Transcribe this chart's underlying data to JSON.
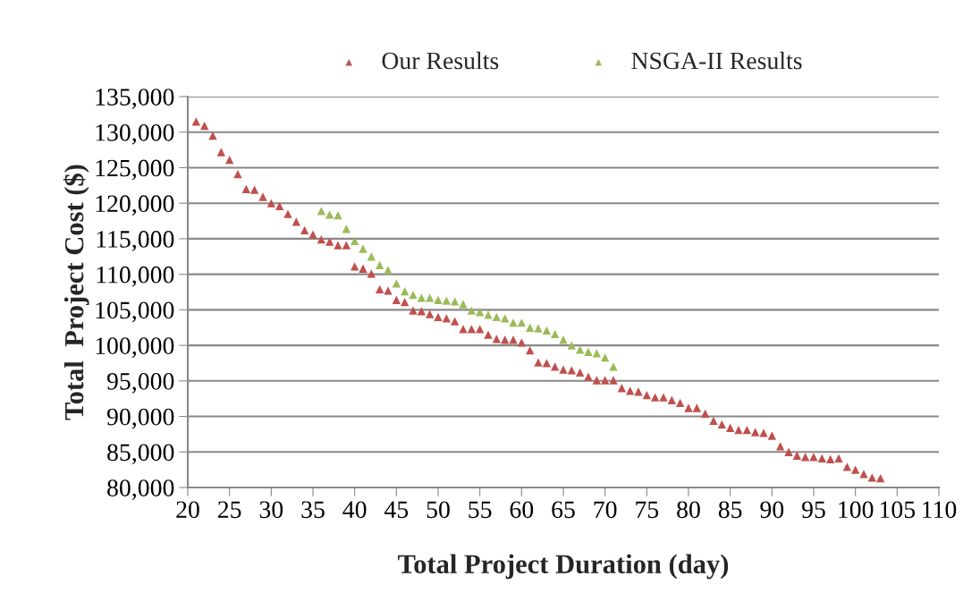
{
  "chart_data": {
    "type": "scatter",
    "xlabel": "Total Project Duration (day)",
    "ylabel": "Total  Project Cost ($)",
    "series": [
      {
        "name": "Our Results",
        "color": "#c0504d",
        "x": [
          21,
          22,
          23,
          24,
          25,
          26,
          27,
          28,
          29,
          30,
          31,
          32,
          33,
          34,
          35,
          36,
          37,
          38,
          39,
          40,
          41,
          42,
          43,
          44,
          45,
          46,
          47,
          48,
          49,
          50,
          51,
          52,
          53,
          54,
          55,
          56,
          57,
          58,
          59,
          60,
          61,
          62,
          63,
          64,
          65,
          66,
          67,
          68,
          69,
          70,
          71,
          72,
          73,
          74,
          75,
          76,
          77,
          78,
          79,
          80,
          81,
          82,
          83,
          84,
          85,
          86,
          87,
          88,
          89,
          90,
          91,
          92,
          93,
          94,
          95,
          96,
          97,
          98,
          99,
          100,
          101,
          102,
          103
        ],
        "values": [
          131500,
          130900,
          129500,
          127200,
          126100,
          124100,
          122000,
          121900,
          120900,
          120000,
          119600,
          118500,
          117400,
          116200,
          115600,
          114900,
          114600,
          114100,
          114100,
          111100,
          110800,
          110100,
          107900,
          107700,
          106400,
          106100,
          104900,
          104800,
          104400,
          104000,
          103800,
          103400,
          102300,
          102300,
          102300,
          101500,
          100900,
          100800,
          100800,
          100400,
          99300,
          97600,
          97500,
          97000,
          96600,
          96500,
          96200,
          95600,
          95100,
          95100,
          95100,
          94000,
          93600,
          93500,
          93000,
          92700,
          92700,
          92300,
          91900,
          91200,
          91200,
          90400,
          89400,
          88900,
          88400,
          88100,
          88100,
          87800,
          87700,
          87300,
          85800,
          85000,
          84500,
          84300,
          84300,
          84100,
          84000,
          84100,
          82900,
          82500,
          81900,
          81400,
          81300
        ]
      },
      {
        "name": "NSGA-II Results",
        "color": "#9bbb59",
        "x": [
          36,
          37,
          38,
          39,
          40,
          41,
          42,
          43,
          44,
          45,
          46,
          47,
          48,
          49,
          50,
          51,
          52,
          53,
          54,
          55,
          56,
          57,
          58,
          59,
          60,
          61,
          62,
          63,
          64,
          65,
          66,
          67,
          68,
          69,
          70,
          71
        ],
        "values": [
          118900,
          118400,
          118300,
          116400,
          114700,
          113600,
          112500,
          111300,
          110600,
          108700,
          107600,
          107100,
          106700,
          106700,
          106400,
          106300,
          106200,
          105800,
          104900,
          104700,
          104300,
          104000,
          103800,
          103200,
          103200,
          102500,
          102400,
          102100,
          101600,
          100800,
          100000,
          99400,
          99100,
          98900,
          98300,
          97000
        ]
      }
    ],
    "xlim": [
      20,
      110
    ],
    "xticks": [
      20,
      25,
      30,
      35,
      40,
      45,
      50,
      55,
      60,
      65,
      70,
      75,
      80,
      85,
      90,
      95,
      100,
      105,
      110
    ],
    "ylim": [
      80000,
      135000
    ],
    "yticks": [
      {
        "value": 80000,
        "label": "80,000"
      },
      {
        "value": 85000,
        "label": "85,000"
      },
      {
        "value": 90000,
        "label": "90,000"
      },
      {
        "value": 95000,
        "label": "95,000"
      },
      {
        "value": 100000,
        "label": "100,000"
      },
      {
        "value": 105000,
        "label": "105,000"
      },
      {
        "value": 110000,
        "label": "110,000"
      },
      {
        "value": 115000,
        "label": "115,000"
      },
      {
        "value": 120000,
        "label": "120,000"
      },
      {
        "value": 125000,
        "label": "125,000"
      },
      {
        "value": 130000,
        "label": "130,000"
      },
      {
        "value": 135000,
        "label": "135,000"
      }
    ],
    "grid": "y",
    "legend": "top",
    "marker": "triangle"
  }
}
